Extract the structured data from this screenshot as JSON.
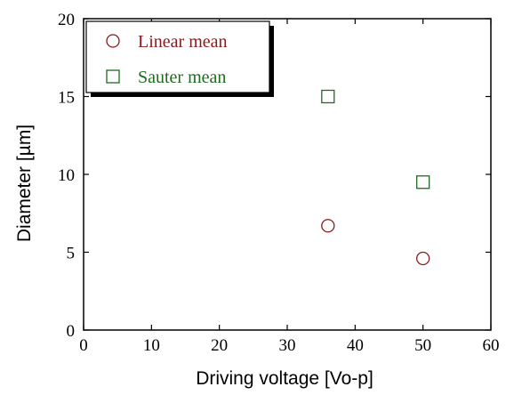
{
  "chart_data": {
    "type": "scatter",
    "title": "",
    "xlabel": "Driving voltage   [Vo-p]",
    "ylabel": "Diameter   [µm]",
    "xlim": [
      0,
      60
    ],
    "ylim": [
      0,
      20
    ],
    "xticks": [
      0,
      10,
      20,
      30,
      40,
      50,
      60
    ],
    "yticks": [
      0,
      5,
      10,
      15,
      20
    ],
    "grid": false,
    "legend_position": "top-left",
    "series": [
      {
        "name": "Linear mean",
        "marker": "circle",
        "color": "#8b1a1a",
        "points": [
          [
            36,
            6.7
          ],
          [
            50,
            4.6
          ]
        ]
      },
      {
        "name": "Sauter mean",
        "marker": "square",
        "color": "#1e6b1e",
        "points": [
          [
            36,
            15.0
          ],
          [
            50,
            9.5
          ]
        ]
      }
    ]
  }
}
